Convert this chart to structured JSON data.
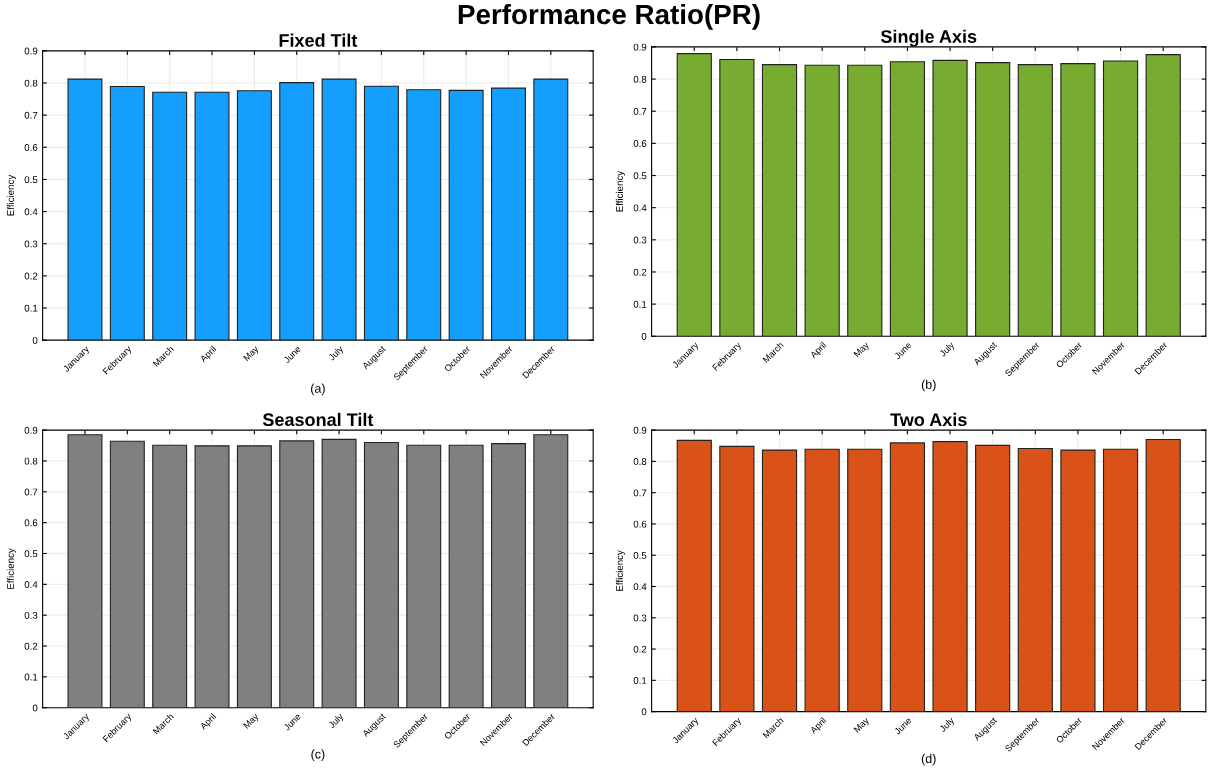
{
  "chart_data": [
    {
      "type": "other",
      "title": "Performance Ratio(PR)"
    },
    {
      "type": "bar",
      "title": "Fixed Tilt",
      "ylabel": "Efficiency",
      "annotations": [
        "(a)"
      ],
      "categories": [
        "January",
        "February",
        "March",
        "April",
        "May",
        "June",
        "July",
        "August",
        "September",
        "October",
        "November",
        "December"
      ],
      "values": [
        0.812,
        0.789,
        0.771,
        0.771,
        0.776,
        0.801,
        0.812,
        0.79,
        0.779,
        0.777,
        0.784,
        0.812
      ],
      "color": "#149efe",
      "ylim": [
        0,
        0.9
      ],
      "yticks": [
        0,
        0.1,
        0.2,
        0.3,
        0.4,
        0.5,
        0.6,
        0.7,
        0.8,
        0.9
      ],
      "grid": true
    },
    {
      "type": "bar",
      "title": "Single Axis",
      "ylabel": "Efficiency",
      "annotations": [
        "(b)"
      ],
      "categories": [
        "January",
        "February",
        "March",
        "April",
        "May",
        "June",
        "July",
        "August",
        "September",
        "October",
        "November",
        "December"
      ],
      "values": [
        0.879,
        0.861,
        0.845,
        0.843,
        0.843,
        0.854,
        0.858,
        0.851,
        0.845,
        0.848,
        0.856,
        0.876
      ],
      "color": "#77ac30",
      "ylim": [
        0,
        0.9
      ],
      "yticks": [
        0,
        0.1,
        0.2,
        0.3,
        0.4,
        0.5,
        0.6,
        0.7,
        0.8,
        0.9
      ],
      "grid": true
    },
    {
      "type": "bar",
      "title": "Seasonal Tilt",
      "ylabel": "Efficiency",
      "annotations": [
        "(c)"
      ],
      "categories": [
        "January",
        "February",
        "March",
        "April",
        "May",
        "June",
        "July",
        "August",
        "September",
        "October",
        "November",
        "December"
      ],
      "values": [
        0.885,
        0.864,
        0.851,
        0.849,
        0.849,
        0.865,
        0.87,
        0.86,
        0.851,
        0.851,
        0.856,
        0.885
      ],
      "color": "#808080",
      "ylim": [
        0,
        0.9
      ],
      "yticks": [
        0,
        0.1,
        0.2,
        0.3,
        0.4,
        0.5,
        0.6,
        0.7,
        0.8,
        0.9
      ],
      "grid": true
    },
    {
      "type": "bar",
      "title": "Two Axis",
      "ylabel": "Efficiency",
      "annotations": [
        "(d)"
      ],
      "categories": [
        "January",
        "February",
        "March",
        "April",
        "May",
        "June",
        "July",
        "August",
        "September",
        "October",
        "November",
        "December"
      ],
      "values": [
        0.867,
        0.848,
        0.836,
        0.839,
        0.839,
        0.859,
        0.863,
        0.851,
        0.841,
        0.836,
        0.839,
        0.87
      ],
      "color": "#d95319",
      "ylim": [
        0,
        0.9
      ],
      "yticks": [
        0,
        0.1,
        0.2,
        0.3,
        0.4,
        0.5,
        0.6,
        0.7,
        0.8,
        0.9
      ],
      "grid": true
    }
  ]
}
